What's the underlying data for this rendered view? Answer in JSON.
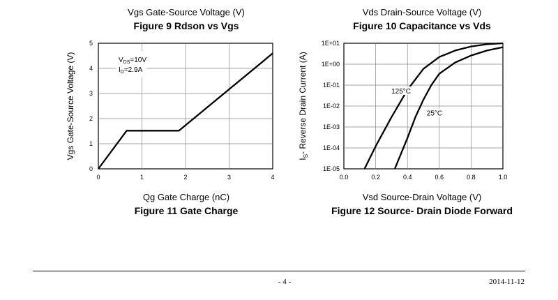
{
  "captions": {
    "left_top": "Vgs Gate-Source Voltage (V)",
    "left_figure_top": "Figure 9 Rdson vs Vgs",
    "right_top": "Vds Drain-Source Voltage (V)",
    "right_figure_top": "Figure 10 Capacitance vs Vds",
    "left_xlabel": "Qg Gate Charge (nC)",
    "left_figure_bottom": "Figure 11 Gate Charge",
    "right_xlabel": "Vsd Source-Drain Voltage (V)",
    "right_figure_bottom": "Figure 12 Source- Drain Diode Forward"
  },
  "footer": {
    "page": "- 4 -",
    "date": "2014-11-12"
  },
  "chart_data": [
    {
      "type": "line",
      "title": "Figure 11 Gate Charge",
      "xlabel": "Qg Gate Charge (nC)",
      "ylabel": "Vgs Gate-Source Voltage (V)",
      "xlim": [
        0,
        4
      ],
      "ylim": [
        0,
        5
      ],
      "x_ticks": [
        "0",
        "1",
        "2",
        "3",
        "4"
      ],
      "y_ticks": [
        "0",
        "1",
        "2",
        "3",
        "4",
        "5"
      ],
      "grid": true,
      "annotations": {
        "vds": "V",
        "vds_sub": "DS",
        "vds_val": "=10V",
        "id": "I",
        "id_sub": "D",
        "id_val": "=2.9A"
      },
      "series": [
        {
          "x": [
            0,
            0.65,
            1.85,
            4.0
          ],
          "y": [
            0,
            1.52,
            1.52,
            4.6
          ]
        }
      ]
    },
    {
      "type": "line",
      "title": "Figure 12 Source- Drain Diode Forward",
      "xlabel": "Vsd Source-Drain Voltage (V)",
      "ylabel": "I",
      "ylabel_sub": "S",
      "ylabel_rest": "- Reverse Drain Current (A)",
      "xlim": [
        0,
        1.0
      ],
      "ylim": [
        1e-05,
        10
      ],
      "yscale": "log",
      "x_ticks": [
        "0.0",
        "0.2",
        "0.4",
        "0.6",
        "0.8",
        "1.0"
      ],
      "y_ticks": [
        "1E-05",
        "1E-04",
        "1E-03",
        "1E-02",
        "1E-01",
        "1E+00",
        "1E+01"
      ],
      "grid": true,
      "series": [
        {
          "name": "125°C",
          "x": [
            0.13,
            0.2,
            0.3,
            0.4,
            0.5,
            0.6,
            0.7,
            0.8,
            0.9,
            1.0
          ],
          "y": [
            1e-05,
            0.00012,
            0.003,
            0.06,
            0.6,
            2.2,
            4.5,
            7.0,
            9.0,
            10
          ]
        },
        {
          "name": "25°C",
          "x": [
            0.32,
            0.4,
            0.45,
            0.5,
            0.55,
            0.6,
            0.7,
            0.8,
            0.9,
            1.0
          ],
          "y": [
            1e-05,
            0.0003,
            0.003,
            0.02,
            0.1,
            0.35,
            1.2,
            2.6,
            4.5,
            6.5
          ]
        }
      ]
    }
  ]
}
